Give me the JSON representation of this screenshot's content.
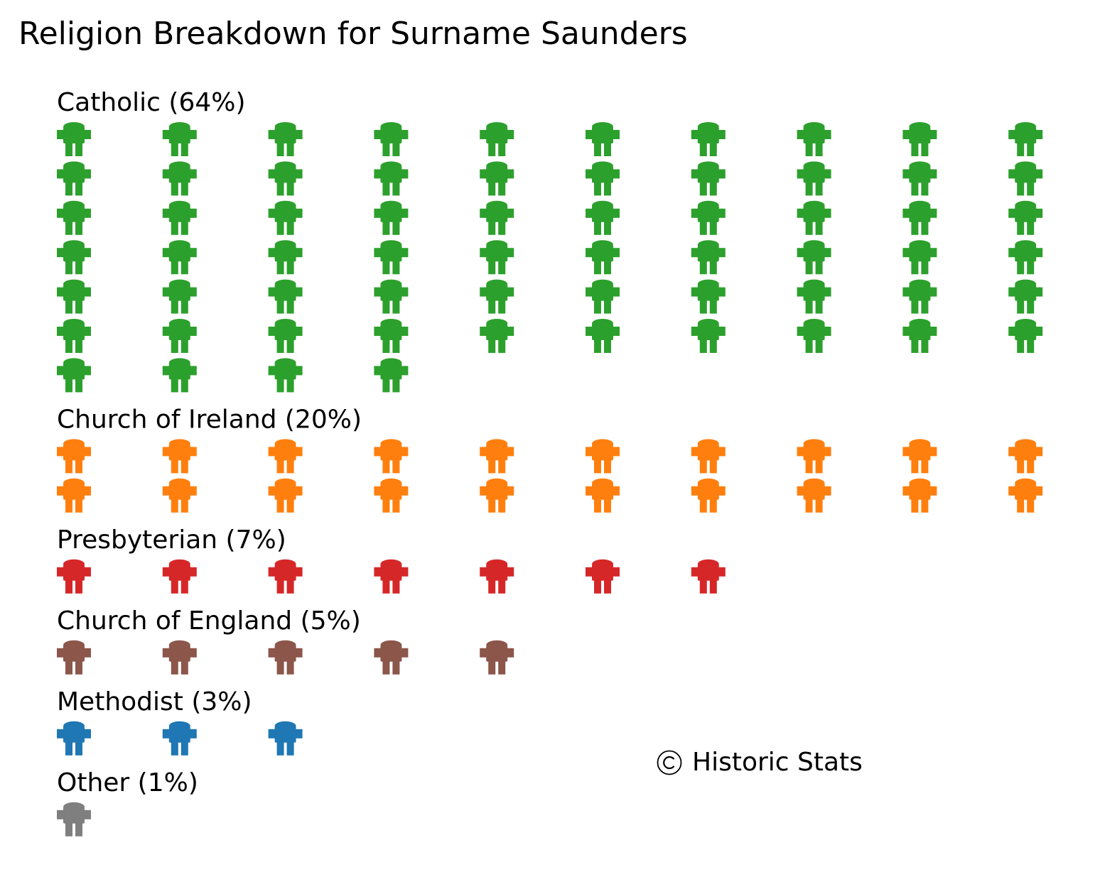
{
  "chart_data": {
    "type": "pictogram",
    "title": "Religion Breakdown for Surname Saunders",
    "icon": "person-icon",
    "icons_per_row": 10,
    "categories": [
      {
        "label": "Catholic (64%)",
        "name": "Catholic",
        "value": 64,
        "color": "#2ca02c"
      },
      {
        "label": "Church of Ireland (20%)",
        "name": "Church of Ireland",
        "value": 20,
        "color": "#ff7f0e"
      },
      {
        "label": "Presbyterian (7%)",
        "name": "Presbyterian",
        "value": 7,
        "color": "#d62728"
      },
      {
        "label": "Church of England (5%)",
        "name": "Church of England",
        "value": 5,
        "color": "#8c564b"
      },
      {
        "label": "Methodist (3%)",
        "name": "Methodist",
        "value": 3,
        "color": "#1f77b4"
      },
      {
        "label": "Other (1%)",
        "name": "Other",
        "value": 1,
        "color": "#7f7f7f"
      }
    ]
  },
  "credit": {
    "icon": "copyright-icon",
    "text": "Historic Stats"
  }
}
